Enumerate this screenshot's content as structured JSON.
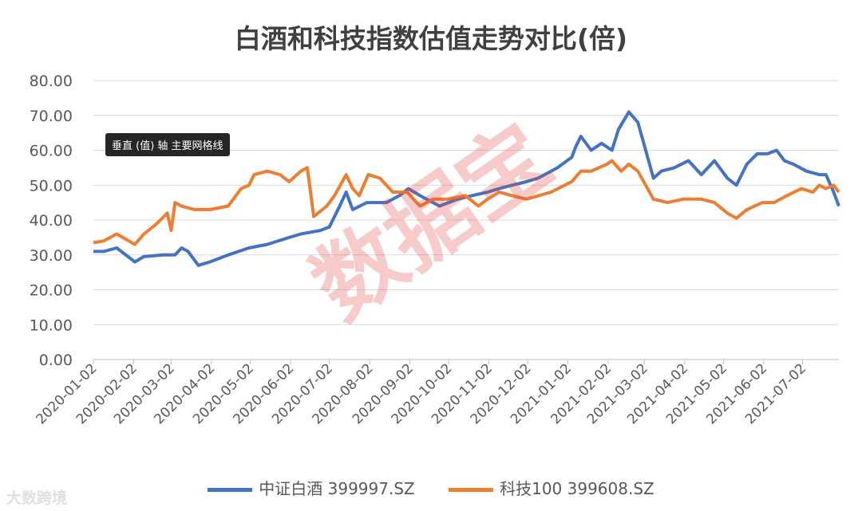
{
  "title": "白酒和科技指数估值走势对比(倍)",
  "tooltip": "垂直 (值) 轴 主要网格线",
  "watermark": "数据宝",
  "brand": "大数跨境",
  "colors": {
    "series1": "#4472C4",
    "series2": "#ED7D31",
    "grid": "#d9d9d9"
  },
  "chart_data": {
    "type": "line",
    "ylim": [
      0,
      80
    ],
    "yticks": [
      "0.00",
      "10.00",
      "20.00",
      "30.00",
      "40.00",
      "50.00",
      "60.00",
      "70.00",
      "80.00"
    ],
    "xlim": [
      "2020-01-02",
      "2021-07-30"
    ],
    "xticks": [
      "2020-01-02",
      "2020-02-02",
      "2020-03-02",
      "2020-04-02",
      "2020-05-02",
      "2020-06-02",
      "2020-07-02",
      "2020-08-02",
      "2020-09-02",
      "2020-10-02",
      "2020-11-02",
      "2020-12-02",
      "2021-01-02",
      "2021-02-02",
      "2021-03-02",
      "2021-04-02",
      "2021-05-02",
      "2021-06-02",
      "2021-07-02"
    ],
    "legend_position": "bottom",
    "grid": true,
    "series": [
      {
        "name": "中证白酒 399997.SZ",
        "points": [
          [
            "2020-01-02",
            31
          ],
          [
            "2020-01-10",
            31
          ],
          [
            "2020-01-20",
            32
          ],
          [
            "2020-02-03",
            28
          ],
          [
            "2020-02-10",
            29.5
          ],
          [
            "2020-02-25",
            30
          ],
          [
            "2020-03-05",
            30
          ],
          [
            "2020-03-10",
            32
          ],
          [
            "2020-03-15",
            31
          ],
          [
            "2020-03-23",
            27
          ],
          [
            "2020-04-01",
            28
          ],
          [
            "2020-04-15",
            30
          ],
          [
            "2020-05-01",
            32
          ],
          [
            "2020-05-15",
            33
          ],
          [
            "2020-06-01",
            35
          ],
          [
            "2020-06-10",
            36
          ],
          [
            "2020-06-25",
            37
          ],
          [
            "2020-07-02",
            38
          ],
          [
            "2020-07-06",
            41
          ],
          [
            "2020-07-10",
            44
          ],
          [
            "2020-07-15",
            48
          ],
          [
            "2020-07-20",
            43
          ],
          [
            "2020-07-31",
            45
          ],
          [
            "2020-08-15",
            45
          ],
          [
            "2020-08-25",
            47
          ],
          [
            "2020-09-01",
            49
          ],
          [
            "2020-09-10",
            47
          ],
          [
            "2020-09-25",
            44
          ],
          [
            "2020-10-09",
            46
          ],
          [
            "2020-10-20",
            47
          ],
          [
            "2020-11-01",
            48
          ],
          [
            "2020-11-10",
            49
          ],
          [
            "2020-11-20",
            50
          ],
          [
            "2020-12-01",
            51
          ],
          [
            "2020-12-10",
            52
          ],
          [
            "2020-12-25",
            55
          ],
          [
            "2021-01-05",
            58
          ],
          [
            "2021-01-08",
            61
          ],
          [
            "2021-01-12",
            64
          ],
          [
            "2021-01-20",
            60
          ],
          [
            "2021-01-28",
            62
          ],
          [
            "2021-02-05",
            60
          ],
          [
            "2021-02-10",
            66
          ],
          [
            "2021-02-18",
            71
          ],
          [
            "2021-02-25",
            68
          ],
          [
            "2021-03-03",
            60
          ],
          [
            "2021-03-09",
            52
          ],
          [
            "2021-03-15",
            54
          ],
          [
            "2021-03-25",
            55
          ],
          [
            "2021-04-05",
            57
          ],
          [
            "2021-04-15",
            53
          ],
          [
            "2021-04-25",
            57
          ],
          [
            "2021-05-05",
            52
          ],
          [
            "2021-05-12",
            50
          ],
          [
            "2021-05-20",
            56
          ],
          [
            "2021-05-28",
            59
          ],
          [
            "2021-06-05",
            59
          ],
          [
            "2021-06-12",
            60
          ],
          [
            "2021-06-18",
            57
          ],
          [
            "2021-06-25",
            56
          ],
          [
            "2021-07-05",
            54
          ],
          [
            "2021-07-15",
            53
          ],
          [
            "2021-07-20",
            53
          ],
          [
            "2021-07-26",
            48
          ],
          [
            "2021-07-30",
            44
          ]
        ]
      },
      {
        "name": "科技100 399608.SZ",
        "points": [
          [
            "2020-01-02",
            33.5
          ],
          [
            "2020-01-10",
            34
          ],
          [
            "2020-01-20",
            36
          ],
          [
            "2020-02-03",
            33
          ],
          [
            "2020-02-10",
            36
          ],
          [
            "2020-02-20",
            39
          ],
          [
            "2020-02-28",
            42
          ],
          [
            "2020-03-02",
            37
          ],
          [
            "2020-03-05",
            45
          ],
          [
            "2020-03-10",
            44
          ],
          [
            "2020-03-20",
            43
          ],
          [
            "2020-04-01",
            43
          ],
          [
            "2020-04-15",
            44
          ],
          [
            "2020-04-25",
            49
          ],
          [
            "2020-05-01",
            50
          ],
          [
            "2020-05-05",
            53
          ],
          [
            "2020-05-15",
            54
          ],
          [
            "2020-05-25",
            53
          ],
          [
            "2020-06-01",
            51
          ],
          [
            "2020-06-10",
            54
          ],
          [
            "2020-06-15",
            55
          ],
          [
            "2020-06-20",
            41
          ],
          [
            "2020-06-30",
            44
          ],
          [
            "2020-07-06",
            47
          ],
          [
            "2020-07-15",
            53
          ],
          [
            "2020-07-20",
            49
          ],
          [
            "2020-07-25",
            47
          ],
          [
            "2020-08-01",
            53
          ],
          [
            "2020-08-10",
            52
          ],
          [
            "2020-08-20",
            48
          ],
          [
            "2020-08-31",
            48
          ],
          [
            "2020-09-10",
            44
          ],
          [
            "2020-09-20",
            46
          ],
          [
            "2020-10-01",
            46
          ],
          [
            "2020-10-15",
            47
          ],
          [
            "2020-10-25",
            44
          ],
          [
            "2020-11-01",
            46
          ],
          [
            "2020-11-10",
            48
          ],
          [
            "2020-11-20",
            47
          ],
          [
            "2020-12-01",
            46
          ],
          [
            "2020-12-20",
            48
          ],
          [
            "2021-01-05",
            51
          ],
          [
            "2021-01-12",
            54
          ],
          [
            "2021-01-20",
            54
          ],
          [
            "2021-02-01",
            56
          ],
          [
            "2021-02-05",
            57
          ],
          [
            "2021-02-12",
            54
          ],
          [
            "2021-02-18",
            56
          ],
          [
            "2021-02-25",
            54
          ],
          [
            "2021-03-03",
            50
          ],
          [
            "2021-03-09",
            46
          ],
          [
            "2021-03-20",
            45
          ],
          [
            "2021-04-01",
            46
          ],
          [
            "2021-04-15",
            46
          ],
          [
            "2021-04-25",
            45
          ],
          [
            "2021-05-05",
            42
          ],
          [
            "2021-05-12",
            40.5
          ],
          [
            "2021-05-20",
            43
          ],
          [
            "2021-06-01",
            45
          ],
          [
            "2021-06-10",
            45
          ],
          [
            "2021-06-20",
            47
          ],
          [
            "2021-07-01",
            49
          ],
          [
            "2021-07-10",
            48
          ],
          [
            "2021-07-15",
            50
          ],
          [
            "2021-07-20",
            49
          ],
          [
            "2021-07-26",
            50
          ],
          [
            "2021-07-30",
            48
          ]
        ]
      }
    ]
  }
}
